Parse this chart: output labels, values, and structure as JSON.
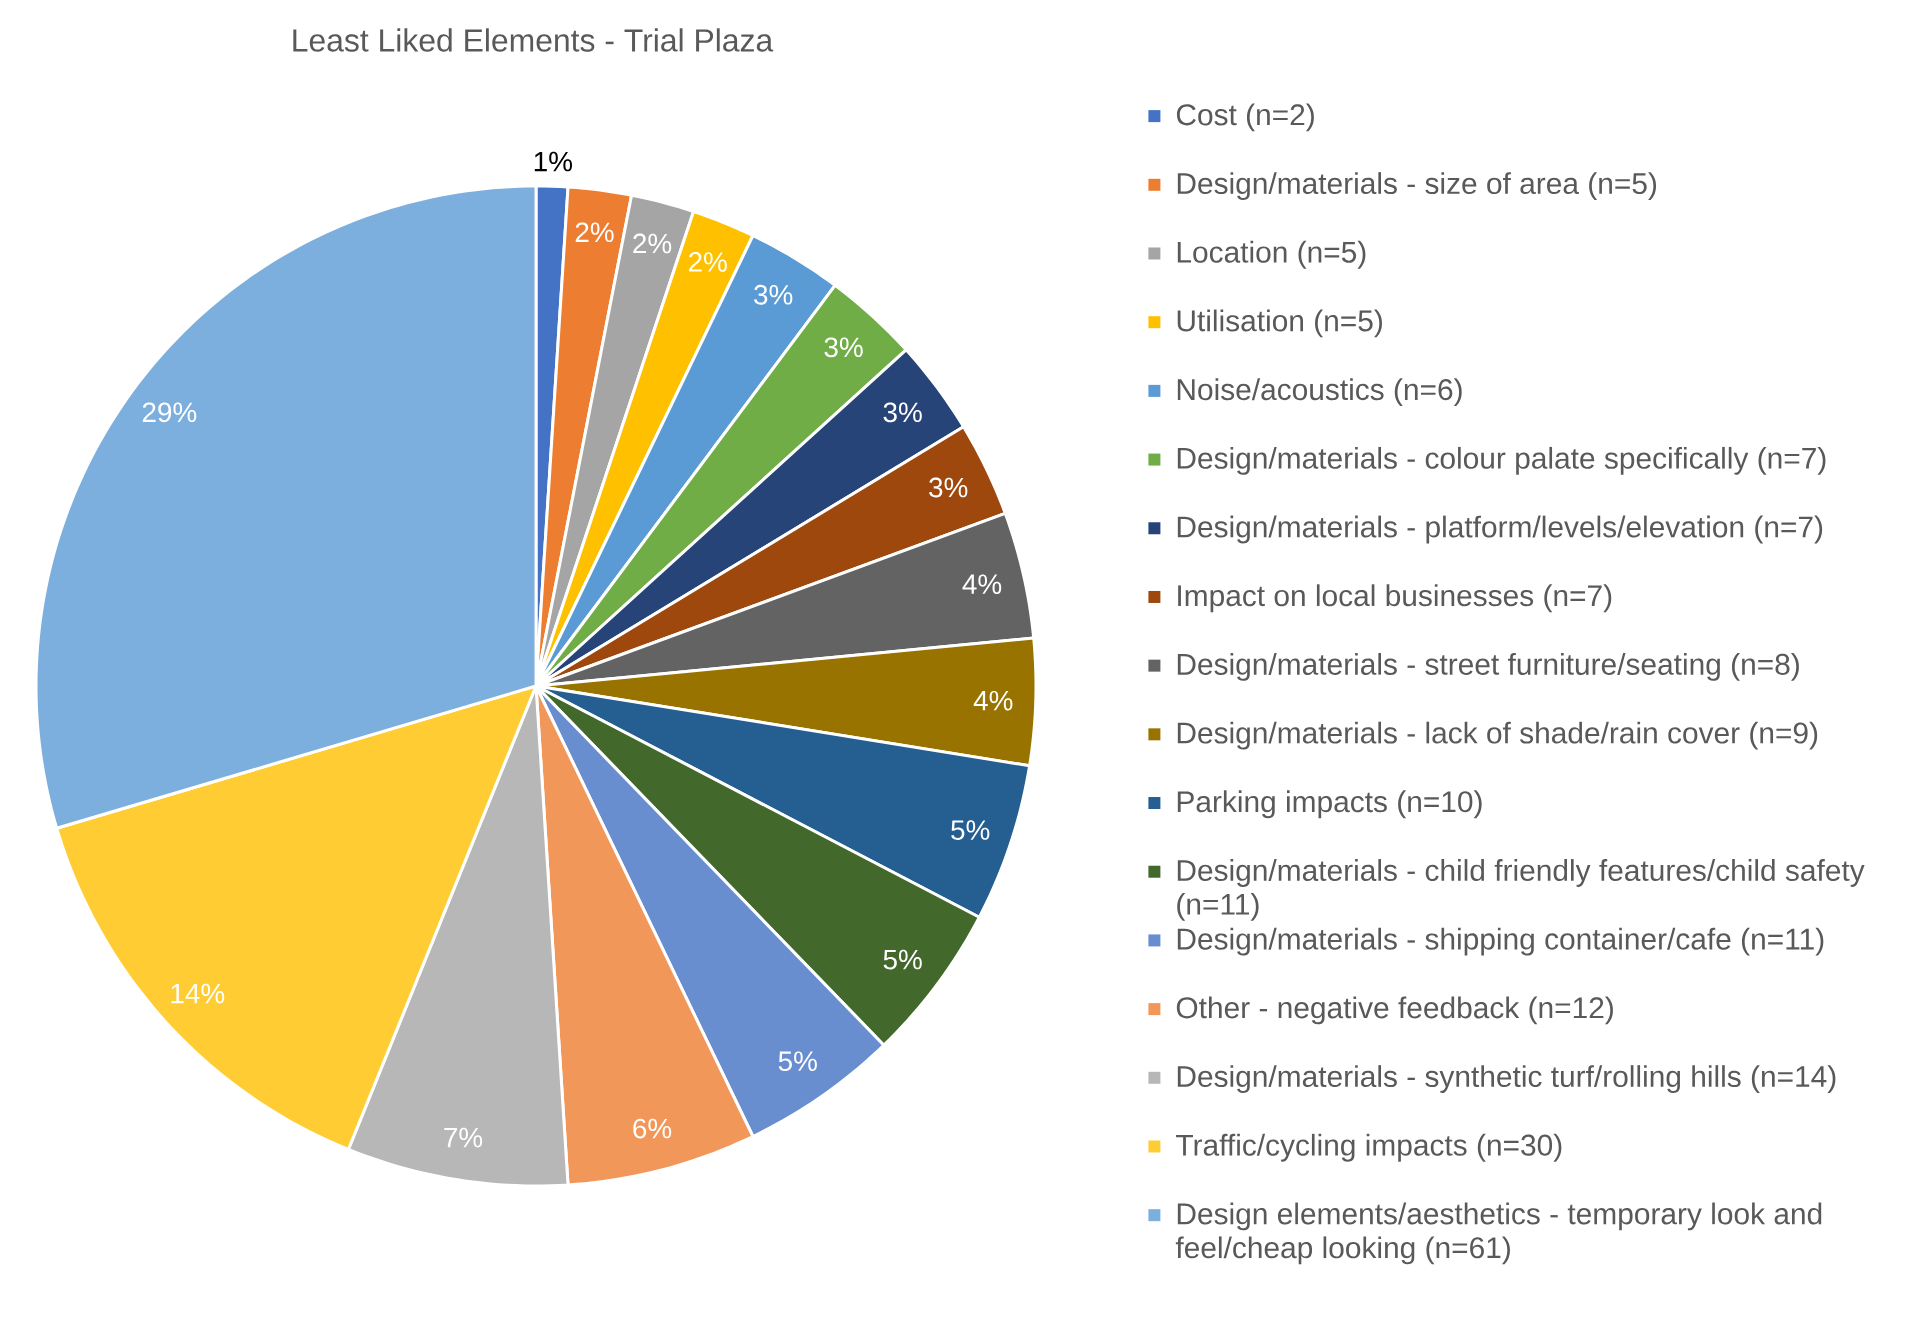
{
  "chart_data": {
    "type": "pie",
    "title": "Least Liked Elements - Trial Plaza",
    "categories": [
      "Cost (n=2)",
      "Design/materials - size of area (n=5)",
      "Location (n=5)",
      "Utilisation (n=5)",
      "Noise/acoustics (n=6)",
      "Design/materials - colour palate specifically (n=7)",
      "Design/materials - platform/levels/elevation (n=7)",
      "Impact on local businesses (n=7)",
      "Design/materials - street furniture/seating (n=8)",
      "Design/materials - lack of shade/rain cover (n=9)",
      "Parking impacts (n=10)",
      "Design/materials - child friendly features/child safety (n=11)",
      "Design/materials - shipping container/cafe (n=11)",
      "Other - negative feedback (n=12)",
      "Design/materials - synthetic turf/rolling hills (n=14)",
      "Traffic/cycling impacts (n=30)",
      "Design elements/aesthetics - temporary look and feel/cheap looking (n=61)"
    ],
    "values": [
      1,
      2,
      2,
      2,
      3,
      3,
      3,
      3,
      4,
      4,
      5,
      5,
      5,
      6,
      7,
      14,
      29
    ],
    "value_labels": [
      "1%",
      "2%",
      "2%",
      "2%",
      "3%",
      "3%",
      "3%",
      "3%",
      "4%",
      "4%",
      "5%",
      "5%",
      "5%",
      "6%",
      "7%",
      "14%",
      "29%"
    ],
    "colors": [
      "#4472C4",
      "#ED7D31",
      "#A5A5A5",
      "#FFC000",
      "#5B9BD5",
      "#70AD47",
      "#264478",
      "#9E480E",
      "#636363",
      "#997300",
      "#255E91",
      "#43682B",
      "#698ED0",
      "#F1975A",
      "#B7B7B7",
      "#FFCD33",
      "#7CAFDD"
    ],
    "legend": "right"
  }
}
